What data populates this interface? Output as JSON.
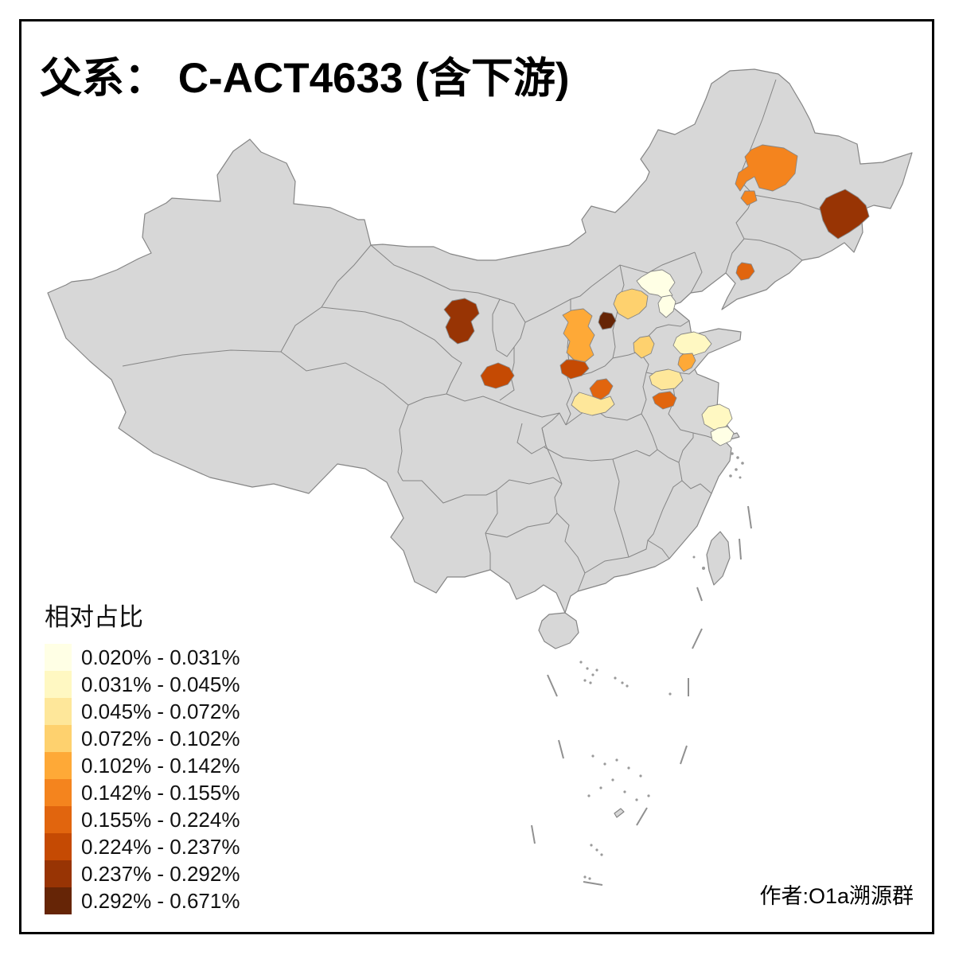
{
  "title": "父系： C-ACT4633 (含下游)",
  "attribution": "作者:O1a溯源群",
  "legend": {
    "title": "相对占比",
    "classes": [
      {
        "label": "0.020% - 0.031%",
        "color": "#FFFFE5"
      },
      {
        "label": "0.031% - 0.045%",
        "color": "#FFF8C2"
      },
      {
        "label": "0.045% - 0.072%",
        "color": "#FEE79A"
      },
      {
        "label": "0.072% - 0.102%",
        "color": "#FED16E"
      },
      {
        "label": "0.102% - 0.142%",
        "color": "#FEA937"
      },
      {
        "label": "0.142% - 0.155%",
        "color": "#F4841E"
      },
      {
        "label": "0.155% - 0.224%",
        "color": "#E1650E"
      },
      {
        "label": "0.224% - 0.237%",
        "color": "#C54A03"
      },
      {
        "label": "0.237% - 0.292%",
        "color": "#983404"
      },
      {
        "label": "0.292% - 0.671%",
        "color": "#662506"
      }
    ]
  },
  "map": {
    "land_color": "#D7D7D7",
    "border_color": "#858585",
    "sea_color": "#FFFFFF",
    "frame_color": "#000000",
    "regions": [
      {
        "id": "heilongjiang-qiqihar",
        "class": 6,
        "value_range": "0.142% - 0.155%"
      },
      {
        "id": "heilongjiang-east",
        "class": 9,
        "value_range": "0.237% - 0.292%"
      },
      {
        "id": "liaoning-central",
        "class": 7,
        "value_range": "0.155% - 0.224%"
      },
      {
        "id": "gansu-wuwei",
        "class": 9,
        "value_range": "0.237% - 0.292%"
      },
      {
        "id": "gansu-lanzhou",
        "class": 8,
        "value_range": "0.224% - 0.237%"
      },
      {
        "id": "shanxi-west",
        "class": 5,
        "value_range": "0.102% - 0.142%"
      },
      {
        "id": "shanxi-southwest",
        "class": 8,
        "value_range": "0.224% - 0.237%"
      },
      {
        "id": "shanxi-central",
        "class": 10,
        "value_range": "0.292% - 0.671%"
      },
      {
        "id": "shanxi-north",
        "class": 4,
        "value_range": "0.072% - 0.102%"
      },
      {
        "id": "henan-west",
        "class": 7,
        "value_range": "0.155% - 0.224%"
      },
      {
        "id": "henan-southwest",
        "class": 3,
        "value_range": "0.045% - 0.072%"
      },
      {
        "id": "beijing",
        "class": 1,
        "value_range": "0.020% - 0.031%"
      },
      {
        "id": "tianjin",
        "class": 1,
        "value_range": "0.020% - 0.031%"
      },
      {
        "id": "hebei-shijiazhuang",
        "class": 4,
        "value_range": "0.072% - 0.102%"
      },
      {
        "id": "shandong-north",
        "class": 2,
        "value_range": "0.031% - 0.045%"
      },
      {
        "id": "shandong-central",
        "class": 5,
        "value_range": "0.102% - 0.142%"
      },
      {
        "id": "shandong-southwest",
        "class": 3,
        "value_range": "0.045% - 0.072%"
      },
      {
        "id": "shandong-linyi",
        "class": 7,
        "value_range": "0.155% - 0.224%"
      },
      {
        "id": "jiangsu-north",
        "class": 2,
        "value_range": "0.031% - 0.045%"
      },
      {
        "id": "jiangsu-southeast",
        "class": 1,
        "value_range": "0.020% - 0.031%"
      }
    ]
  }
}
